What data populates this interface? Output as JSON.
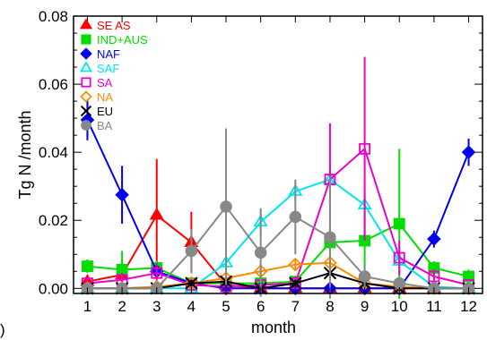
{
  "chart_data": {
    "type": "line",
    "xlabel": "month",
    "ylabel": "Tg N /month",
    "xlim": [
      0.6,
      12.4
    ],
    "ylim": [
      -0.0015,
      0.08
    ],
    "x": [
      1,
      2,
      3,
      4,
      5,
      6,
      7,
      8,
      9,
      10,
      11,
      12
    ],
    "xticks": [
      "1",
      "2",
      "3",
      "4",
      "5",
      "6",
      "7",
      "8",
      "9",
      "10",
      "11",
      "12"
    ],
    "yticks": [
      0.0,
      0.02,
      0.04,
      0.06,
      0.08
    ],
    "ytick_labels": [
      "0.00",
      "0.02",
      "0.04",
      "0.06",
      "0.08"
    ],
    "legend_position": "top-left",
    "panel_label": ")",
    "series": [
      {
        "name": "SE AS",
        "color": "#ff0000",
        "marker": "triangle-filled",
        "values": [
          0.002,
          0.004,
          0.0215,
          0.0135,
          0.001,
          0.0,
          0.0,
          0.0,
          0.0,
          0.0,
          0.0,
          0.0
        ],
        "error": [
          0.001,
          0.002,
          0.0165,
          0.009,
          0.001,
          0,
          0,
          0,
          0,
          0,
          0,
          0
        ]
      },
      {
        "name": "IND+AUS",
        "color": "#00dd00",
        "marker": "square-filled",
        "values": [
          0.0065,
          0.0055,
          0.006,
          0.0015,
          0.0015,
          0.0015,
          0.002,
          0.0135,
          0.014,
          0.019,
          0.006,
          0.0035
        ],
        "error": [
          0.002,
          0.0055,
          0.002,
          0.001,
          0.001,
          0.001,
          0.001,
          0.006,
          0.008,
          0.022,
          0.002,
          0.002
        ]
      },
      {
        "name": "NAF",
        "color": "#0000ee",
        "marker": "diamond-filled",
        "values": [
          0.0495,
          0.0275,
          0.005,
          0.0015,
          0.0,
          0.0,
          0.0,
          0.0,
          0.0,
          0.0,
          0.0145,
          0.04
        ],
        "error": [
          0.006,
          0.0085,
          0.002,
          0.001,
          0.0005,
          0.0005,
          0.0005,
          0.0005,
          0.0005,
          0.0005,
          0.0025,
          0.004
        ]
      },
      {
        "name": "SAF",
        "color": "#00e5ee",
        "marker": "triangle-open",
        "values": [
          0.0,
          0.0,
          0.0,
          0.0,
          0.0075,
          0.0195,
          0.0285,
          0.032,
          0.0245,
          0.008,
          0.0005,
          0.0
        ],
        "error": [
          0,
          0,
          0,
          0,
          0.004,
          0.004,
          0.003,
          0.003,
          0.004,
          0.004,
          0.0005,
          0
        ]
      },
      {
        "name": "SA",
        "color": "#ee00cc",
        "marker": "square-open",
        "values": [
          0.0015,
          0.0025,
          0.0045,
          0.001,
          0.0005,
          0.001,
          0.0015,
          0.032,
          0.041,
          0.009,
          0.0035,
          0.001
        ],
        "error": [
          0.001,
          0.002,
          0.003,
          0.001,
          0.001,
          0.001,
          0.002,
          0.0165,
          0.027,
          0.005,
          0.002,
          0.001
        ]
      },
      {
        "name": "NA",
        "color": "#ff8c00",
        "marker": "diamond-open",
        "values": [
          0.0,
          0.0,
          0.0005,
          0.0015,
          0.003,
          0.005,
          0.007,
          0.0075,
          0.0015,
          0.0005,
          0.0,
          0.0
        ],
        "error": [
          0,
          0,
          0.0005,
          0.001,
          0.002,
          0.002,
          0.0015,
          0.002,
          0.001,
          0.0005,
          0,
          0
        ]
      },
      {
        "name": "EU",
        "color": "#000000",
        "marker": "x",
        "values": [
          0.0,
          0.0,
          0.0,
          0.0015,
          0.002,
          0.0,
          0.0015,
          0.0045,
          0.0015,
          0.0,
          0.0,
          0.0
        ],
        "error": [
          0,
          0,
          0,
          0.001,
          0.002,
          0.001,
          0.001,
          0.002,
          0.001,
          0,
          0,
          0
        ]
      },
      {
        "name": "BA",
        "color": "#888888",
        "marker": "circle-filled",
        "values": [
          0.0,
          0.0,
          0.0,
          0.011,
          0.024,
          0.0105,
          0.021,
          0.015,
          0.0035,
          0.0015,
          0.0,
          0.0
        ],
        "error": [
          0,
          0,
          0,
          0.0065,
          0.023,
          0.013,
          0.011,
          0.018,
          0.0035,
          0.002,
          0,
          0
        ]
      }
    ]
  }
}
